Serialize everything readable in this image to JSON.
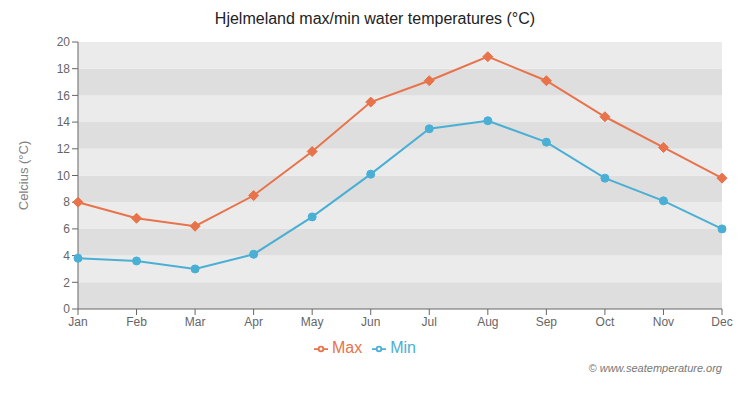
{
  "chart_data": {
    "type": "line",
    "title": "Hjelmeland max/min water temperatures (°C)",
    "ylabel": "Celcius (°C)",
    "categories": [
      "Jan",
      "Feb",
      "Mar",
      "Apr",
      "May",
      "Jun",
      "Jul",
      "Aug",
      "Sep",
      "Oct",
      "Nov",
      "Dec"
    ],
    "series": [
      {
        "name": "Max",
        "color": "#e8734a",
        "marker": "diamond",
        "values": [
          8.0,
          6.8,
          6.2,
          8.5,
          11.8,
          15.5,
          17.1,
          18.9,
          17.1,
          14.4,
          12.1,
          9.8
        ]
      },
      {
        "name": "Min",
        "color": "#4aafd4",
        "marker": "circle",
        "values": [
          3.8,
          3.6,
          3.0,
          4.1,
          6.9,
          10.1,
          13.5,
          14.1,
          12.5,
          9.8,
          8.1,
          6.0
        ]
      }
    ],
    "ylim": [
      0,
      20
    ],
    "yticks": [
      0,
      2,
      4,
      6,
      8,
      10,
      12,
      14,
      16,
      18,
      20
    ],
    "grid": false,
    "legend": "bottom",
    "annotations": [
      "© www.seatemperature.org"
    ]
  }
}
